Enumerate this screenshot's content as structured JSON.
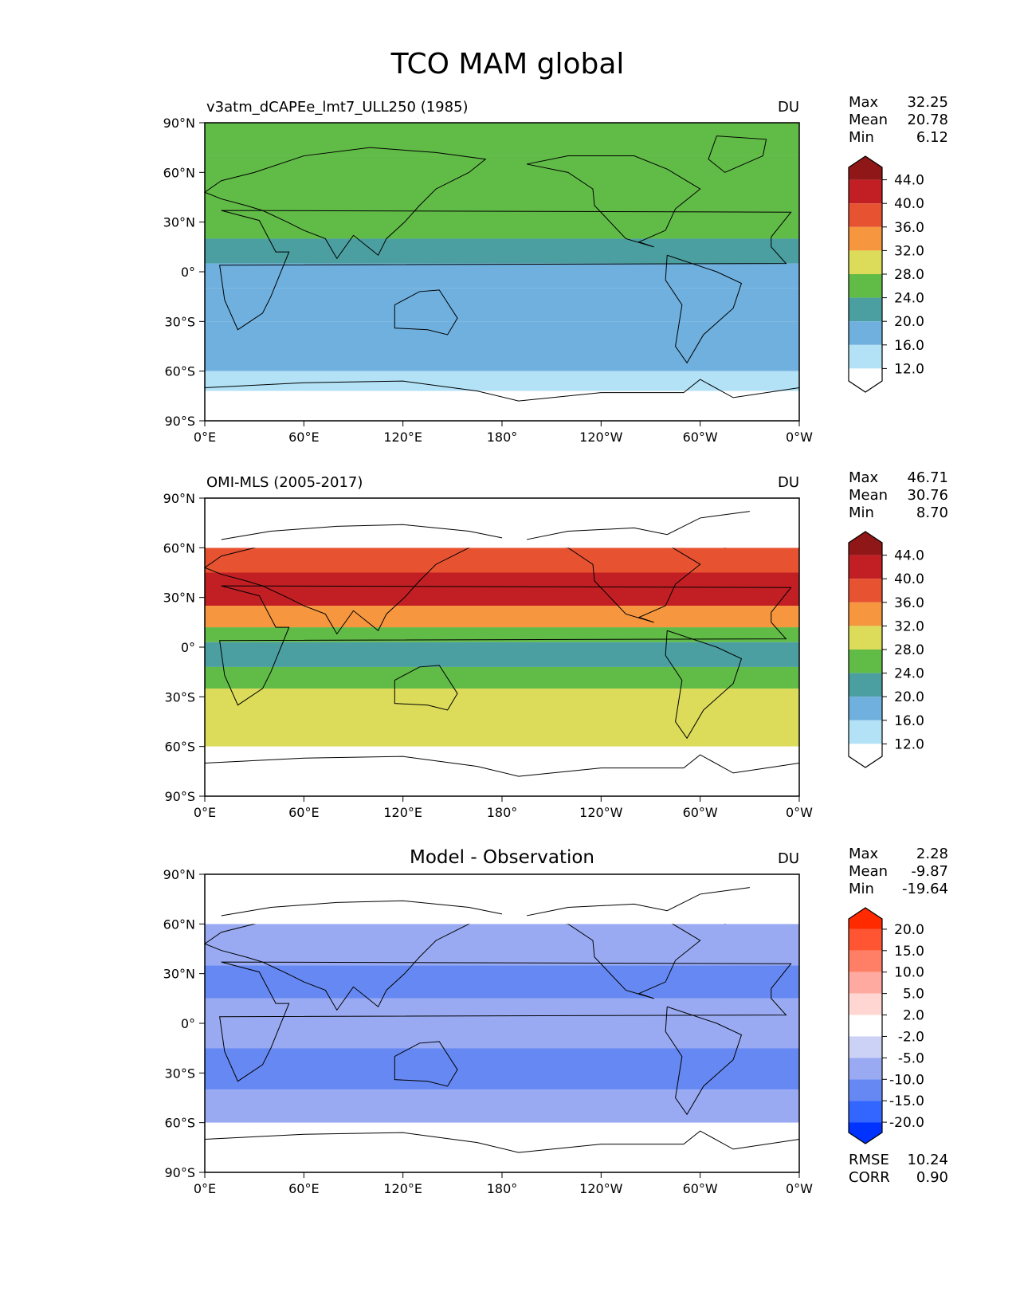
{
  "title": "TCO MAM global",
  "colors": {
    "abs_cmap": [
      "#ffffff",
      "#b3e2f6",
      "#6fb0de",
      "#4b9fa0",
      "#61bb47",
      "#dcdc5a",
      "#f6963e",
      "#e75231",
      "#c21f24",
      "#8f1718"
    ],
    "diff_cmap": [
      "#0033ff",
      "#3366ff",
      "#6688f2",
      "#99aaf2",
      "#ccd2f6",
      "#ffffff",
      "#ffd6d2",
      "#ffaaa0",
      "#ff7f66",
      "#ff5533",
      "#ff2a00"
    ],
    "coast": "#000000"
  },
  "axes": {
    "lat_ticks": [
      "90°N",
      "60°N",
      "30°N",
      "0°",
      "30°S",
      "60°S",
      "90°S"
    ],
    "lon_ticks": [
      "0°E",
      "60°E",
      "120°E",
      "180°",
      "120°W",
      "60°W",
      "0°W"
    ]
  },
  "chart_data": [
    {
      "type": "heatmap",
      "name": "model",
      "left_title": "v3atm_dCAPEe_lmt7_ULL250 (1985)",
      "center_title": "",
      "units": "DU",
      "stats": [
        {
          "label": "Max",
          "value": "32.25"
        },
        {
          "label": "Mean",
          "value": "20.78"
        },
        {
          "label": "Min",
          "value": "6.12"
        }
      ],
      "levels": [
        12.0,
        16.0,
        20.0,
        24.0,
        28.0,
        32.0,
        36.0,
        40.0,
        44.0
      ],
      "level_labels": [
        "44.0",
        "40.0",
        "36.0",
        "32.0",
        "28.0",
        "24.0",
        "20.0",
        "16.0",
        "12.0"
      ],
      "lat_range": [
        -90,
        90
      ],
      "lon_range": [
        0,
        360
      ],
      "zonal_bands": [
        {
          "lat_from": 90,
          "lat_to": 70,
          "value": 26
        },
        {
          "lat_from": 70,
          "lat_to": 45,
          "value": 27
        },
        {
          "lat_from": 45,
          "lat_to": 20,
          "value": 26
        },
        {
          "lat_from": 20,
          "lat_to": 5,
          "value": 22
        },
        {
          "lat_from": 5,
          "lat_to": -10,
          "value": 17
        },
        {
          "lat_from": -10,
          "lat_to": -30,
          "value": 19
        },
        {
          "lat_from": -30,
          "lat_to": -60,
          "value": 18
        },
        {
          "lat_from": -60,
          "lat_to": -72,
          "value": 14
        },
        {
          "lat_from": -72,
          "lat_to": -90,
          "value": 11
        }
      ]
    },
    {
      "type": "heatmap",
      "name": "observation",
      "left_title": "OMI-MLS (2005-2017)",
      "center_title": "",
      "units": "DU",
      "stats": [
        {
          "label": "Max",
          "value": "46.71"
        },
        {
          "label": "Mean",
          "value": "30.76"
        },
        {
          "label": "Min",
          "value": "8.70"
        }
      ],
      "levels": [
        12.0,
        16.0,
        20.0,
        24.0,
        28.0,
        32.0,
        36.0,
        40.0,
        44.0
      ],
      "level_labels": [
        "44.0",
        "40.0",
        "36.0",
        "32.0",
        "28.0",
        "24.0",
        "20.0",
        "16.0",
        "12.0"
      ],
      "lat_range": [
        -90,
        90
      ],
      "lon_range": [
        0,
        360
      ],
      "valid_lat": [
        -60,
        60
      ],
      "zonal_bands": [
        {
          "lat_from": 60,
          "lat_to": 45,
          "value": 37
        },
        {
          "lat_from": 45,
          "lat_to": 25,
          "value": 40
        },
        {
          "lat_from": 25,
          "lat_to": 12,
          "value": 34
        },
        {
          "lat_from": 12,
          "lat_to": 3,
          "value": 27
        },
        {
          "lat_from": 3,
          "lat_to": -12,
          "value": 22
        },
        {
          "lat_from": -12,
          "lat_to": -25,
          "value": 26
        },
        {
          "lat_from": -25,
          "lat_to": -45,
          "value": 29
        },
        {
          "lat_from": -45,
          "lat_to": -60,
          "value": 30
        }
      ]
    },
    {
      "type": "heatmap",
      "name": "difference",
      "left_title": "",
      "center_title": "Model - Observation",
      "units": "DU",
      "stats": [
        {
          "label": "Max",
          "value": "2.28"
        },
        {
          "label": "Mean",
          "value": "-9.87"
        },
        {
          "label": "Min",
          "value": "-19.64"
        }
      ],
      "levels": [
        -20.0,
        -15.0,
        -10.0,
        -5.0,
        -2.0,
        2.0,
        5.0,
        10.0,
        15.0,
        20.0
      ],
      "level_labels": [
        "20.0",
        "15.0",
        "10.0",
        "5.0",
        "2.0",
        "-2.0",
        "-5.0",
        "-10.0",
        "-15.0",
        "-20.0"
      ],
      "lat_range": [
        -90,
        90
      ],
      "lon_range": [
        0,
        360
      ],
      "valid_lat": [
        -60,
        60
      ],
      "zonal_bands": [
        {
          "lat_from": 60,
          "lat_to": 35,
          "value": -8
        },
        {
          "lat_from": 35,
          "lat_to": 15,
          "value": -12
        },
        {
          "lat_from": 15,
          "lat_to": -15,
          "value": -7
        },
        {
          "lat_from": -15,
          "lat_to": -40,
          "value": -11
        },
        {
          "lat_from": -40,
          "lat_to": -60,
          "value": -9
        }
      ],
      "footer": [
        {
          "label": "RMSE",
          "value": "10.24"
        },
        {
          "label": "CORR",
          "value": "0.90"
        }
      ]
    }
  ]
}
